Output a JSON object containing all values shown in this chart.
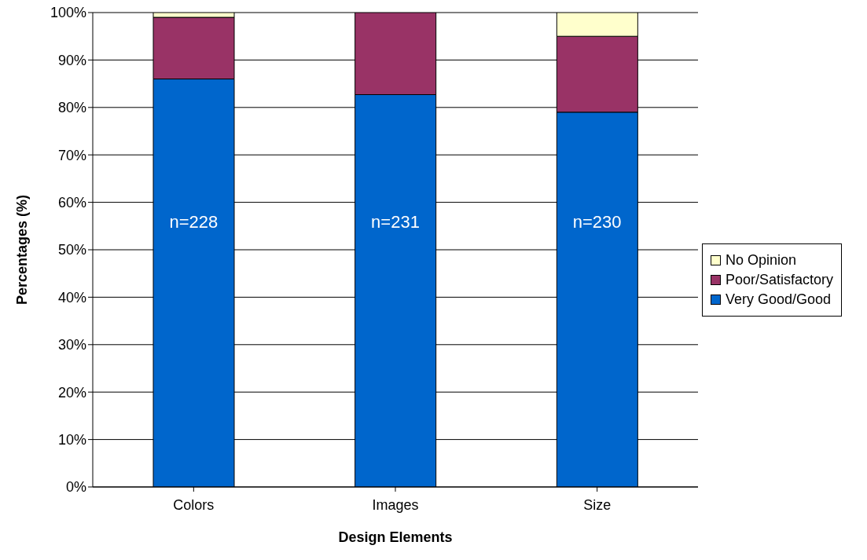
{
  "chart_data": {
    "type": "bar",
    "stacked": true,
    "xlabel": "Design Elements",
    "ylabel": "Percentages (%)",
    "categories": [
      "Colors",
      "Images",
      "Size"
    ],
    "series": [
      {
        "name": "Very Good/Good",
        "color": "#0066cc",
        "values": [
          86,
          82.7,
          79
        ]
      },
      {
        "name": "Poor/Satisfactory",
        "color": "#993366",
        "values": [
          13,
          17.3,
          16
        ]
      },
      {
        "name": "No Opinion",
        "color": "#ffffcc",
        "values": [
          1,
          0,
          5
        ]
      }
    ],
    "ylim": [
      0,
      100
    ],
    "yticks": [
      {
        "value": 0,
        "label": "0%"
      },
      {
        "value": 10,
        "label": "10%"
      },
      {
        "value": 20,
        "label": "20%"
      },
      {
        "value": 30,
        "label": "30%"
      },
      {
        "value": 40,
        "label": "40%"
      },
      {
        "value": 50,
        "label": "50%"
      },
      {
        "value": 60,
        "label": "60%"
      },
      {
        "value": 70,
        "label": "70%"
      },
      {
        "value": 80,
        "label": "80%"
      },
      {
        "value": 90,
        "label": "90%"
      },
      {
        "value": 100,
        "label": "100%"
      }
    ],
    "grid": "y",
    "legend": "right",
    "annotations": [
      "n=228",
      "n=231",
      "n=230"
    ]
  }
}
